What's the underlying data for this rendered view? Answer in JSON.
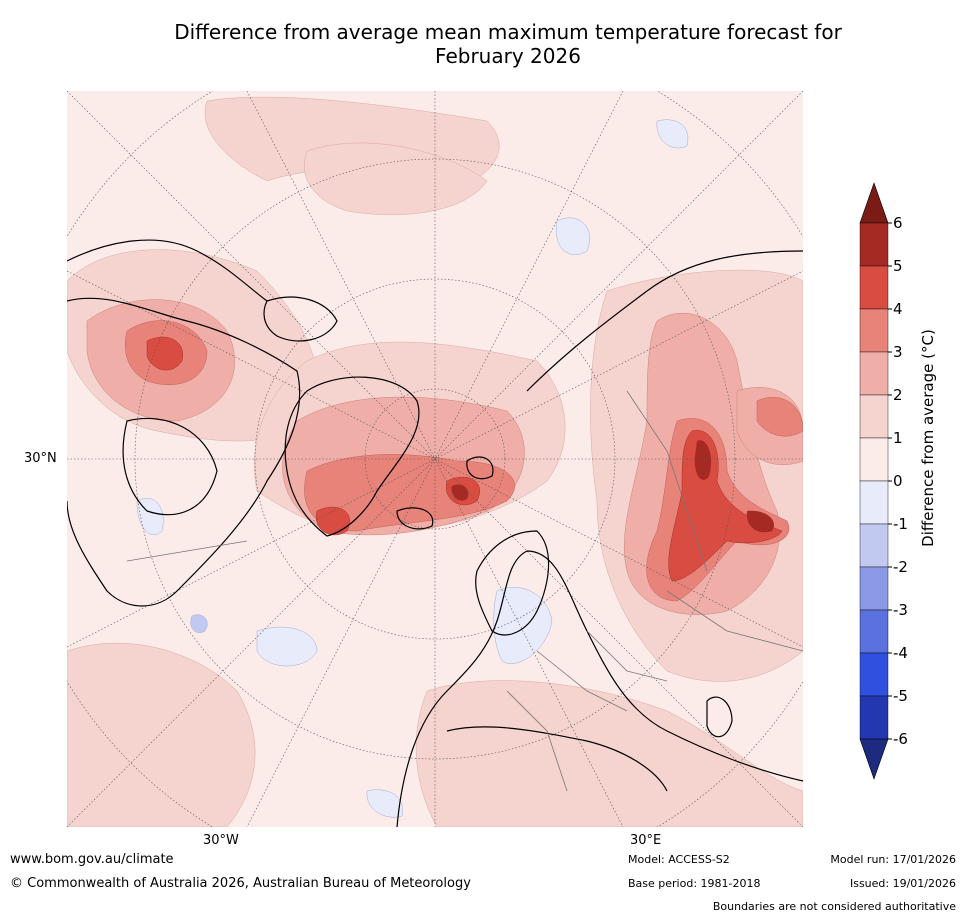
{
  "title_line1": "Difference from average mean maximum temperature forecast for",
  "title_line2": "February 2026",
  "map": {
    "lat_label": "30°N",
    "lon_label_west": "30°W",
    "lon_label_east": "30°E"
  },
  "colorbar": {
    "label": "Difference from average (°C)",
    "ticks": [
      "6",
      "5",
      "4",
      "3",
      "2",
      "1",
      "0",
      "-1",
      "-2",
      "-3",
      "-4",
      "-5",
      "-6"
    ],
    "range": [
      -6,
      6
    ],
    "colors": {
      "over": "#7a1c15",
      "5_6": "#a52a24",
      "4_5": "#d94c41",
      "3_4": "#e8837a",
      "2_3": "#efafa8",
      "1_2": "#f5d3cf",
      "0_1": "#fbecea",
      "m1_0": "#e7ebfa",
      "m2_m1": "#c1c9f1",
      "m3_m2": "#8b9ae6",
      "m4_m3": "#5b71dd",
      "m5_m4": "#3050e0",
      "m6_m5": "#2338b0",
      "under": "#1c2a80"
    }
  },
  "footer": {
    "url": "www.bom.gov.au/climate",
    "copyright": "© Commonwealth of Australia 2026, Australian Bureau of Meteorology",
    "model": "Model: ACCESS-S2",
    "base_period": "Base period: 1981-2018",
    "model_run": "Model run: 17/01/2026",
    "issued": "Issued: 19/01/2026",
    "boundaries_note": "Boundaries are not considered authoritative"
  }
}
